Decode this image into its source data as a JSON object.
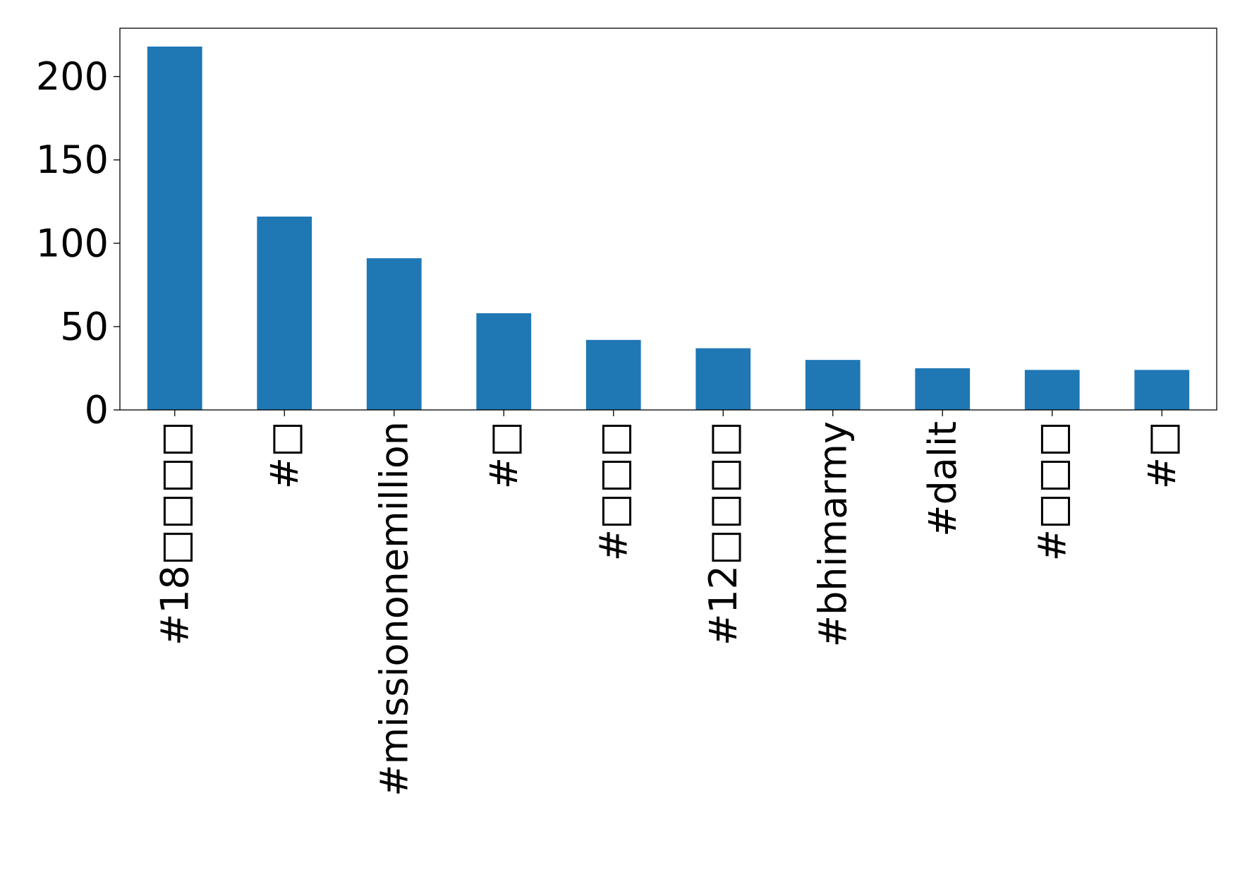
{
  "chart_data": {
    "type": "bar",
    "categories": [
      "#18□□□□",
      "#□",
      "#missiononemillion",
      "#□",
      "#□□□",
      "#12□□□□",
      "#bhimarmy",
      "#dalit",
      "#□□□",
      "#□"
    ],
    "values": [
      218,
      116,
      91,
      58,
      42,
      37,
      30,
      25,
      24,
      24
    ],
    "title": "",
    "xlabel": "",
    "ylabel": "",
    "ylim": [
      0,
      229
    ],
    "yticks": [
      0,
      50,
      100,
      150,
      200
    ],
    "ytick_labels": [
      "0",
      "50",
      "100",
      "150",
      "200"
    ],
    "bar_color": "#1f77b4",
    "grid": false,
    "legend": "none",
    "xtick_rotation": "vertical"
  }
}
